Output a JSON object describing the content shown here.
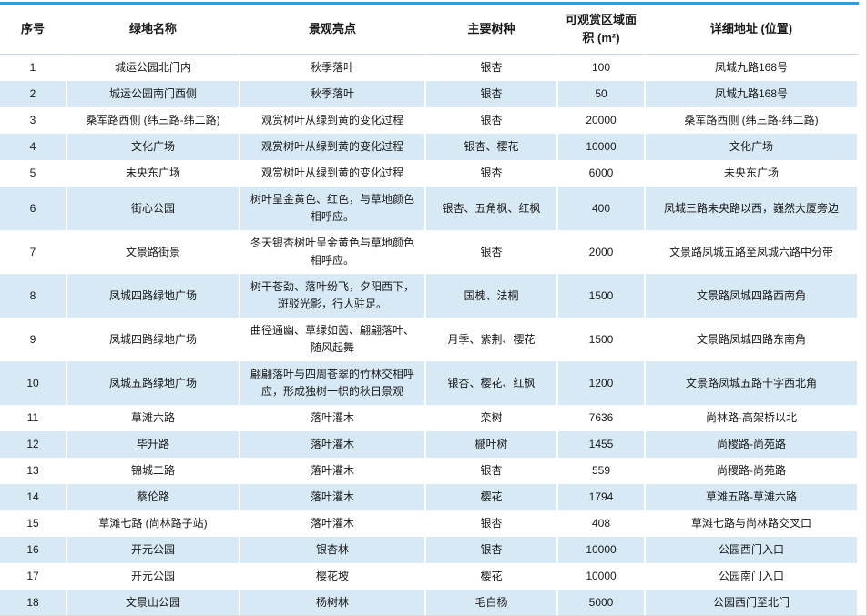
{
  "table": {
    "title_semantic": "城市绿地秋季景观观赏点一览表",
    "columns": [
      {
        "label": "序号"
      },
      {
        "label": "绿地名称"
      },
      {
        "label": "景观亮点"
      },
      {
        "label": "主要树种"
      },
      {
        "label": "可观赏区域面积 (m²)"
      },
      {
        "label": "详细地址 (位置)"
      }
    ],
    "rows": [
      [
        "1",
        "城运公园北门内",
        "秋季落叶",
        "银杏",
        "100",
        "凤城九路168号"
      ],
      [
        "2",
        "城运公园南门西侧",
        "秋季落叶",
        "银杏",
        "50",
        "凤城九路168号"
      ],
      [
        "3",
        "桑军路西侧 (纬三路-纬二路)",
        "观赏树叶从绿到黄的变化过程",
        "银杏",
        "20000",
        "桑军路西侧 (纬三路-纬二路)"
      ],
      [
        "4",
        "文化广场",
        "观赏树叶从绿到黄的变化过程",
        "银杏、樱花",
        "10000",
        "文化广场"
      ],
      [
        "5",
        "未央东广场",
        "观赏树叶从绿到黄的变化过程",
        "银杏",
        "6000",
        "未央东广场"
      ],
      [
        "6",
        "街心公园",
        "树叶呈金黄色、红色，与草地颜色相呼应。",
        "银杏、五角枫、红枫",
        "400",
        "凤城三路未央路以西，巍然大厦旁边"
      ],
      [
        "7",
        "文景路街景",
        "冬天银杏树叶呈金黄色与草地颜色相呼应。",
        "银杏",
        "2000",
        "文景路凤城五路至凤城六路中分带"
      ],
      [
        "8",
        "凤城四路绿地广场",
        "树干苍劲、落叶纷飞，夕阳西下，斑驳光影，行人驻足。",
        "国槐、法桐",
        "1500",
        "文景路凤城四路西南角"
      ],
      [
        "9",
        "凤城四路绿地广场",
        "曲径通幽、草绿如茵、翩翩落叶、随风起舞",
        "月季、紫荆、樱花",
        "1500",
        "文景路凤城四路东南角"
      ],
      [
        "10",
        "凤城五路绿地广场",
        "翩翩落叶与四周苍翠的竹林交相呼应，形成独树一帜的秋日景观",
        "银杏、樱花、红枫",
        "1200",
        "文景路凤城五路十字西北角"
      ],
      [
        "11",
        "草滩六路",
        "落叶灌木",
        "栾树",
        "7636",
        "尚林路-高架桥以北"
      ],
      [
        "12",
        "毕升路",
        "落叶灌木",
        "槭叶树",
        "1455",
        "尚稷路-尚苑路"
      ],
      [
        "13",
        "锦城二路",
        "落叶灌木",
        "银杏",
        "559",
        "尚稷路-尚苑路"
      ],
      [
        "14",
        "蔡伦路",
        "落叶灌木",
        "樱花",
        "1794",
        "草滩五路-草滩六路"
      ],
      [
        "15",
        "草滩七路 (尚林路子站)",
        "落叶灌木",
        "银杏",
        "408",
        "草滩七路与尚林路交叉口"
      ],
      [
        "16",
        "开元公园",
        "银杏林",
        "银杏",
        "10000",
        "公园西门入口"
      ],
      [
        "17",
        "开元公园",
        "樱花坡",
        "樱花",
        "10000",
        "公园南门入口"
      ],
      [
        "18",
        "文景山公园",
        "杨树林",
        "毛白杨",
        "5000",
        "公园西门至北门"
      ]
    ]
  },
  "colors": {
    "accent_blue": "#2e9fd4",
    "row_stripe": "#d7e9f5",
    "header_underline": "#c9d4dc",
    "text": "#1a1a1a"
  }
}
